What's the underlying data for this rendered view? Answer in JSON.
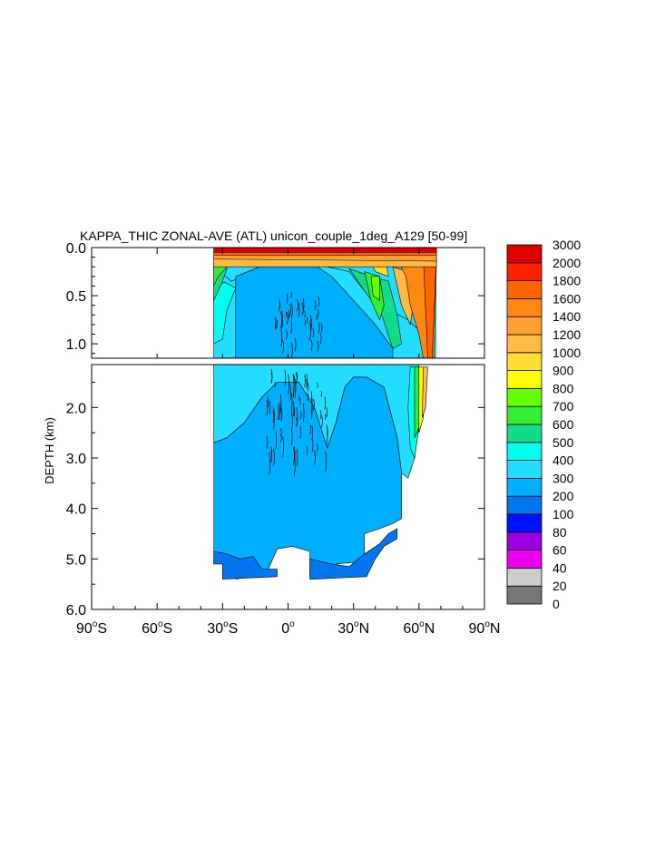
{
  "chart_data": {
    "type": "heatmap",
    "title": "KAPPA_THIC ZONAL-AVE (ATL) unicon_couple_1deg_A129 [50-99]",
    "ylabel": "DEPTH (km)",
    "x_ticks": [
      {
        "value": -90,
        "label": "90",
        "sup": "o",
        "hemi": "S"
      },
      {
        "value": -60,
        "label": "60",
        "sup": "o",
        "hemi": "S"
      },
      {
        "value": -30,
        "label": "30",
        "sup": "o",
        "hemi": "S"
      },
      {
        "value": 0,
        "label": "0",
        "sup": "o",
        "hemi": ""
      },
      {
        "value": 30,
        "label": "30",
        "sup": "o",
        "hemi": "N"
      },
      {
        "value": 60,
        "label": "60",
        "sup": "o",
        "hemi": "N"
      },
      {
        "value": 90,
        "label": "90",
        "sup": "o",
        "hemi": "N"
      }
    ],
    "xlim": [
      -90,
      90
    ],
    "upper_panel": {
      "ylim": [
        0.0,
        1.15
      ],
      "y_ticks": [
        {
          "value": 0.0,
          "label": "0.0"
        },
        {
          "value": 0.5,
          "label": "0.5"
        },
        {
          "value": 1.0,
          "label": "1.0"
        }
      ]
    },
    "lower_panel": {
      "ylim": [
        1.15,
        6.0
      ],
      "y_ticks": [
        {
          "value": 2.0,
          "label": "2.0"
        },
        {
          "value": 3.0,
          "label": "3.0"
        },
        {
          "value": 4.0,
          "label": "4.0"
        },
        {
          "value": 5.0,
          "label": "5.0"
        },
        {
          "value": 6.0,
          "label": "6.0"
        }
      ]
    },
    "colorbar": {
      "labels": [
        "0",
        "20",
        "40",
        "60",
        "80",
        "100",
        "200",
        "300",
        "400",
        "500",
        "600",
        "700",
        "800",
        "900",
        "1000",
        "1200",
        "1400",
        "1600",
        "1800",
        "2000",
        "3000"
      ],
      "colors": [
        "#777777",
        "#cccccc",
        "#ee00ee",
        "#9900dd",
        "#0011ff",
        "#0077ee",
        "#00b0ff",
        "#22ddff",
        "#00ffee",
        "#11dd88",
        "#33ee33",
        "#66ff00",
        "#ffff00",
        "#ffdd33",
        "#ffbb44",
        "#ffa030",
        "#ff8811",
        "#ff6600",
        "#ff2200",
        "#dd0000"
      ]
    },
    "fields": {
      "upper_regions": [
        {
          "level": "300",
          "color": "#22ddff",
          "poly": [
            [
              -34,
              0.2
            ],
            [
              -26,
              0.35
            ],
            [
              -18,
              0.28
            ],
            [
              -5,
              0.1
            ],
            [
              5,
              0.1
            ],
            [
              18,
              0.2
            ],
            [
              28,
              0.25
            ],
            [
              35,
              0.45
            ],
            [
              42,
              0.6
            ],
            [
              55,
              0.75
            ],
            [
              62,
              0.9
            ],
            [
              62,
              1.15
            ],
            [
              -34,
              1.15
            ]
          ]
        },
        {
          "level": "200",
          "color": "#00b0ff",
          "poly": [
            [
              -24,
              0.3
            ],
            [
              -15,
              0.22
            ],
            [
              -5,
              0.1
            ],
            [
              4,
              0.1
            ],
            [
              12,
              0.18
            ],
            [
              20,
              0.3
            ],
            [
              30,
              0.55
            ],
            [
              40,
              0.8
            ],
            [
              48,
              1.05
            ],
            [
              48,
              1.15
            ],
            [
              -24,
              1.15
            ]
          ]
        },
        {
          "level": "400",
          "color": "#00ffee",
          "poly": [
            [
              -34,
              0.4
            ],
            [
              -29,
              0.36
            ],
            [
              -24,
              0.42
            ],
            [
              -28,
              0.65
            ],
            [
              -30,
              0.95
            ],
            [
              -34,
              1.0
            ]
          ]
        },
        {
          "level": "500",
          "color": "#11dd88",
          "poly": [
            [
              -34,
              0.2
            ],
            [
              -28,
              0.22
            ],
            [
              -30,
              0.35
            ],
            [
              -34,
              0.55
            ]
          ]
        },
        {
          "level": "600",
          "color": "#33ee33",
          "poly": [
            [
              -34,
              0.15
            ],
            [
              -27,
              0.18
            ],
            [
              -32,
              0.3
            ],
            [
              -34,
              0.4
            ]
          ]
        },
        {
          "level": "500",
          "color": "#11dd88",
          "poly": [
            [
              28,
              0.22
            ],
            [
              38,
              0.3
            ],
            [
              46,
              0.35
            ],
            [
              50,
              0.7
            ],
            [
              52,
              1.0
            ],
            [
              48,
              1.05
            ],
            [
              43,
              0.7
            ],
            [
              35,
              0.45
            ]
          ]
        },
        {
          "level": "600",
          "color": "#33ee33",
          "poly": [
            [
              35,
              0.25
            ],
            [
              42,
              0.3
            ],
            [
              44,
              0.6
            ],
            [
              42,
              0.75
            ],
            [
              38,
              0.55
            ]
          ]
        },
        {
          "level": "700",
          "color": "#66ff00",
          "poly": [
            [
              38,
              0.3
            ],
            [
              42,
              0.3
            ],
            [
              42,
              0.55
            ],
            [
              39,
              0.5
            ]
          ]
        },
        {
          "level": "900",
          "color": "#ffdd33",
          "poly": [
            [
              38,
              0.15
            ],
            [
              45,
              0.18
            ],
            [
              46,
              0.3
            ],
            [
              40,
              0.25
            ]
          ]
        },
        {
          "level": "1000",
          "color": "#ffbb44",
          "poly": [
            [
              48,
              0.2
            ],
            [
              55,
              0.25
            ],
            [
              58,
              0.5
            ],
            [
              56,
              0.8
            ],
            [
              52,
              0.6
            ]
          ]
        },
        {
          "level": "1400",
          "color": "#ff8811",
          "poly": [
            [
              50,
              0.12
            ],
            [
              68,
              0.12
            ],
            [
              67,
              1.15
            ],
            [
              62,
              1.15
            ],
            [
              60,
              0.9
            ],
            [
              56,
              0.6
            ],
            [
              54,
              0.3
            ]
          ]
        },
        {
          "level": "1600",
          "color": "#ff6600",
          "poly": [
            [
              62,
              0.1
            ],
            [
              68,
              0.1
            ],
            [
              66,
              1.15
            ],
            [
              64,
              1.15
            ]
          ]
        }
      ],
      "upper_bands": [
        {
          "level": "1000",
          "color": "#ffbb44",
          "poly": [
            [
              -34,
              0.05
            ],
            [
              68,
              0.05
            ],
            [
              68,
              0.2
            ],
            [
              -34,
              0.2
            ]
          ]
        },
        {
          "level": "1200",
          "color": "#ffa030",
          "poly": [
            [
              -34,
              0.03
            ],
            [
              68,
              0.03
            ],
            [
              68,
              0.14
            ],
            [
              -34,
              0.12
            ]
          ]
        },
        {
          "level": "1600",
          "color": "#ff6600",
          "poly": [
            [
              -34,
              0.02
            ],
            [
              68,
              0.02
            ],
            [
              68,
              0.08
            ],
            [
              -34,
              0.08
            ]
          ]
        },
        {
          "level": "3000",
          "color": "#dd0000",
          "poly": [
            [
              -34,
              0.0
            ],
            [
              68,
              0.0
            ],
            [
              68,
              0.05
            ],
            [
              -34,
              0.05
            ]
          ]
        }
      ],
      "lower_regions": [
        {
          "level": "300",
          "color": "#22ddff",
          "poly": [
            [
              -34,
              1.15
            ],
            [
              60,
              1.15
            ],
            [
              60,
              2.0
            ],
            [
              58,
              3.0
            ],
            [
              55,
              3.4
            ],
            [
              52,
              3.3
            ],
            [
              50,
              2.6
            ],
            [
              44,
              1.6
            ],
            [
              36,
              1.4
            ],
            [
              30,
              1.4
            ],
            [
              26,
              1.6
            ],
            [
              22,
              2.3
            ],
            [
              18,
              2.8
            ],
            [
              12,
              2.0
            ],
            [
              5,
              1.5
            ],
            [
              -5,
              1.5
            ],
            [
              -12,
              1.8
            ],
            [
              -20,
              2.3
            ],
            [
              -28,
              2.6
            ],
            [
              -34,
              2.7
            ]
          ]
        },
        {
          "level": "200",
          "color": "#00b0ff",
          "poly": [
            [
              -34,
              2.7
            ],
            [
              -28,
              2.6
            ],
            [
              -20,
              2.3
            ],
            [
              -12,
              1.8
            ],
            [
              -5,
              1.5
            ],
            [
              5,
              1.5
            ],
            [
              12,
              2.0
            ],
            [
              18,
              2.8
            ],
            [
              22,
              2.3
            ],
            [
              26,
              1.6
            ],
            [
              30,
              1.4
            ],
            [
              36,
              1.4
            ],
            [
              44,
              1.6
            ],
            [
              50,
              2.6
            ],
            [
              52,
              3.3
            ],
            [
              52,
              4.2
            ],
            [
              48,
              4.3
            ],
            [
              42,
              4.4
            ],
            [
              35,
              4.5
            ],
            [
              35,
              5.05
            ],
            [
              22,
              5.1
            ],
            [
              20,
              5.35
            ],
            [
              10,
              5.35
            ],
            [
              10,
              4.85
            ],
            [
              2,
              4.75
            ],
            [
              -5,
              4.8
            ],
            [
              -10,
              5.3
            ],
            [
              -24,
              5.4
            ],
            [
              -28,
              5.0
            ],
            [
              -34,
              5.1
            ]
          ]
        },
        {
          "level": "100",
          "color": "#0077ee",
          "poly": [
            [
              -34,
              4.85
            ],
            [
              -28,
              4.9
            ],
            [
              -22,
              5.0
            ],
            [
              -16,
              4.95
            ],
            [
              -12,
              5.2
            ],
            [
              -5,
              5.2
            ],
            [
              -5,
              5.35
            ],
            [
              -30,
              5.4
            ],
            [
              -30,
              5.1
            ],
            [
              -34,
              5.1
            ]
          ]
        },
        {
          "level": "100",
          "color": "#0077ee",
          "poly": [
            [
              10,
              5.0
            ],
            [
              20,
              5.1
            ],
            [
              28,
              5.15
            ],
            [
              35,
              4.9
            ],
            [
              42,
              4.7
            ],
            [
              46,
              4.5
            ],
            [
              50,
              4.4
            ],
            [
              50,
              4.6
            ],
            [
              44,
              4.75
            ],
            [
              40,
              5.0
            ],
            [
              36,
              5.35
            ],
            [
              12,
              5.4
            ],
            [
              10,
              5.4
            ]
          ]
        },
        {
          "level": "400",
          "color": "#00ffee",
          "poly": [
            [
              56,
              1.2
            ],
            [
              60,
              1.2
            ],
            [
              60,
              2.4
            ],
            [
              58,
              3.0
            ],
            [
              56,
              2.8
            ],
            [
              55,
              2.0
            ]
          ]
        },
        {
          "level": "600",
          "color": "#33ee33",
          "poly": [
            [
              58,
              1.2
            ],
            [
              62,
              1.2
            ],
            [
              60,
              2.4
            ],
            [
              58,
              2.6
            ]
          ]
        },
        {
          "level": "800",
          "color": "#ffff00",
          "poly": [
            [
              60,
              1.2
            ],
            [
              63,
              1.2
            ],
            [
              62,
              2.2
            ],
            [
              60,
              2.5
            ]
          ]
        },
        {
          "level": "1000",
          "color": "#ffbb44",
          "poly": [
            [
              62,
              1.2
            ],
            [
              64,
              1.2
            ],
            [
              63,
              2.0
            ],
            [
              61.5,
              2.2
            ]
          ]
        }
      ]
    },
    "data_extent": {
      "lon_min": -34,
      "lon_max": 68
    }
  }
}
